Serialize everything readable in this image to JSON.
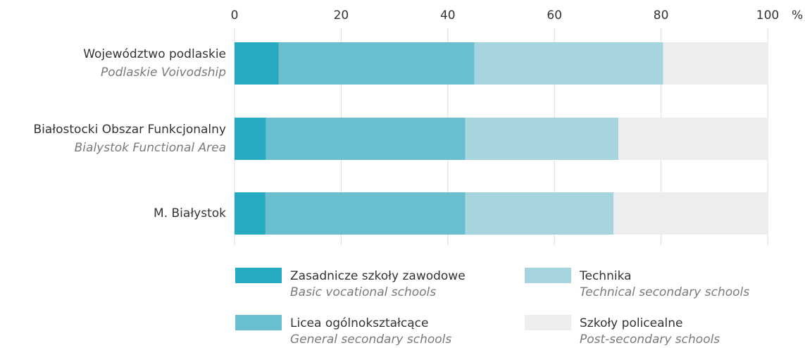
{
  "chart_data": {
    "type": "stacked_bar_horizontal",
    "categories": [
      "Województwo podlaskie",
      "Białostocki Obszar Funkcjonalny",
      "M. Białystok"
    ],
    "category_translations": [
      "Podlaskie Voivodship",
      "Bialystok Functional Area",
      null
    ],
    "series": [
      {
        "name": "Zasadnicze szkoły zawodowe",
        "translation": "Basic vocational schools",
        "color": "#27a9bf",
        "values": [
          8.3,
          5.9,
          5.8
        ]
      },
      {
        "name": "Licea ogólnokształcące",
        "translation": "General secondary schools",
        "color": "#69bfcf",
        "values": [
          36.7,
          37.4,
          37.5
        ]
      },
      {
        "name": "Technika",
        "translation": "Technical secondary schools",
        "color": "#a6d5df",
        "values": [
          35.4,
          28.7,
          27.8
        ]
      },
      {
        "name": "Szkoły policealne",
        "translation": "Post-secondary schools",
        "color": "#ecedef",
        "values": [
          19.6,
          28.0,
          28.9
        ]
      }
    ],
    "xlim": [
      0,
      100
    ],
    "xticks": [
      0,
      20,
      40,
      60,
      80,
      100
    ],
    "x_unit": "%",
    "grid": true
  }
}
